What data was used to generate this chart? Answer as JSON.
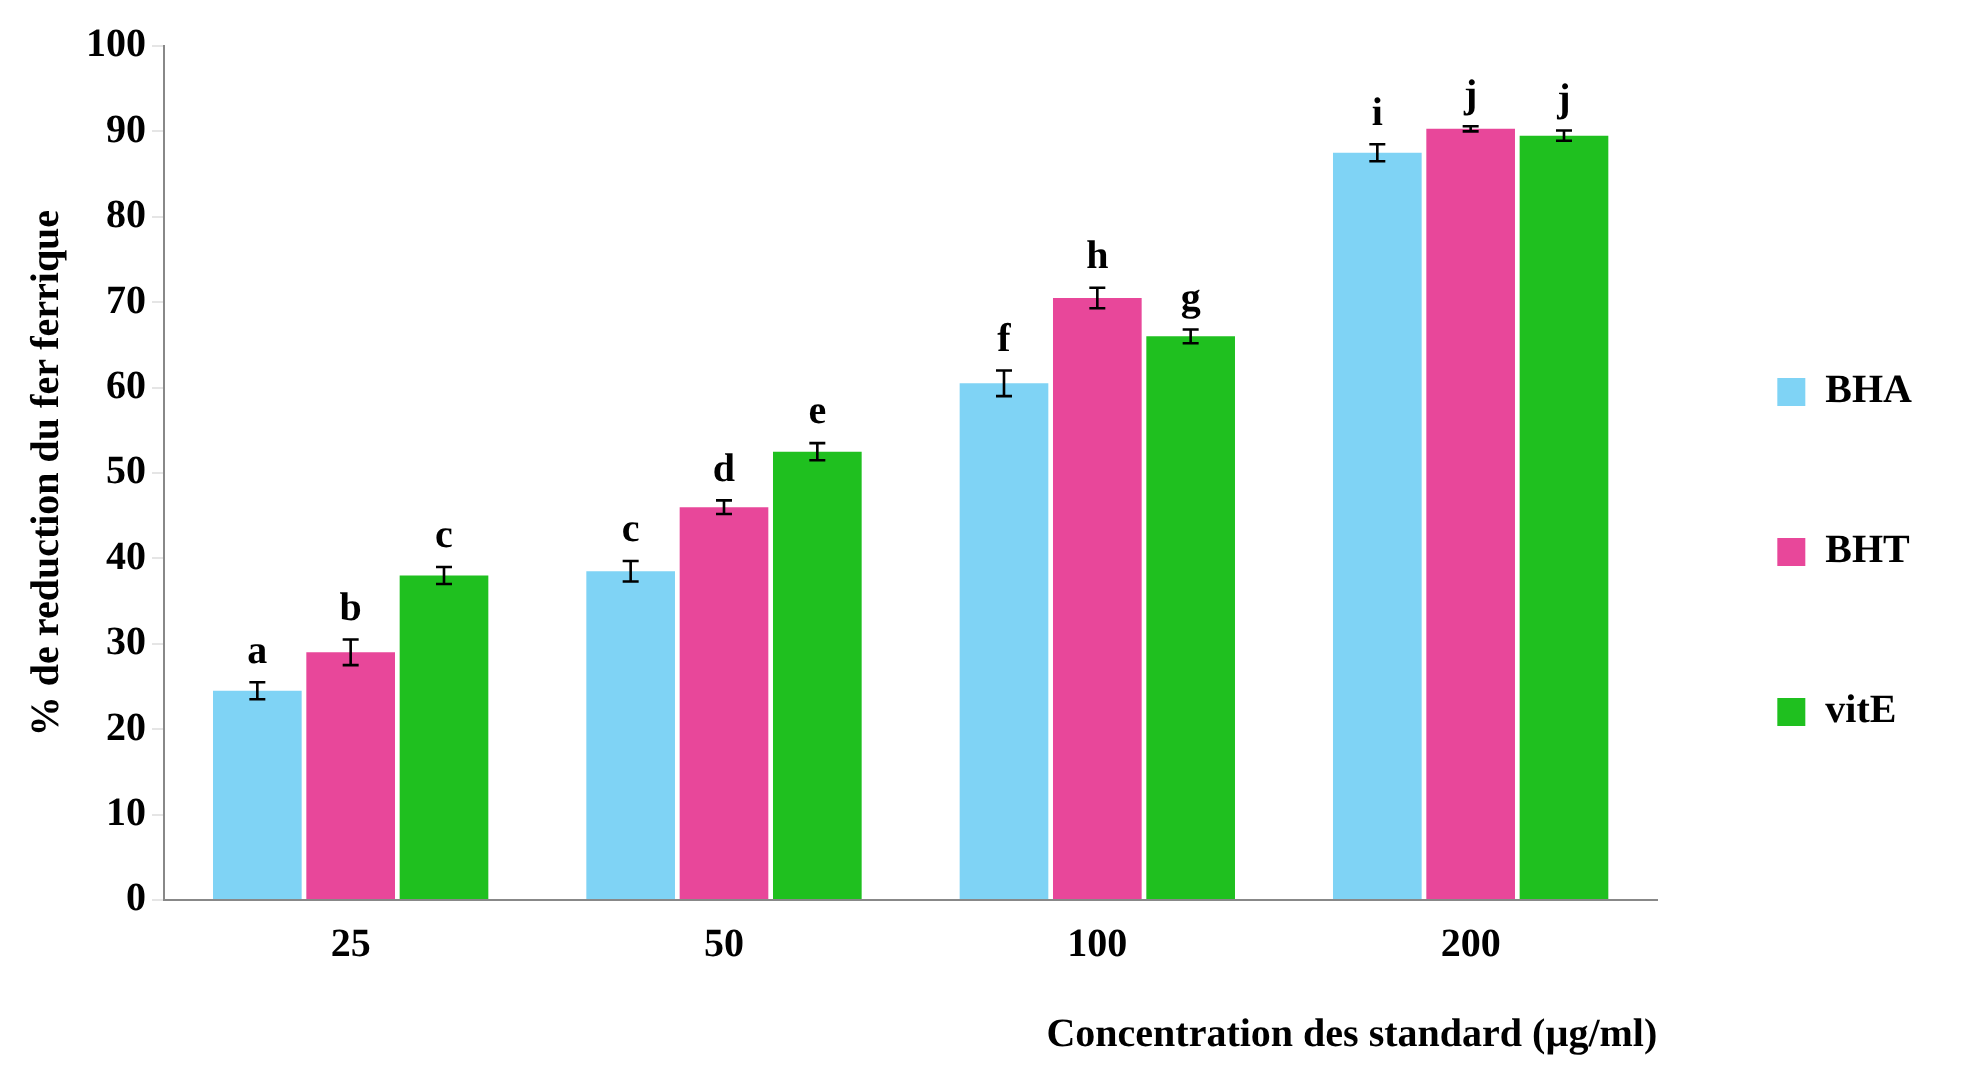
{
  "chart_data": {
    "type": "bar",
    "xlabel": "Concentration des standard (µg/ml)",
    "ylabel": "% de reduction du fer ferrique",
    "categories": [
      "25",
      "50",
      "100",
      "200"
    ],
    "series": [
      {
        "name": "BHA",
        "color": "#7fd3f5",
        "values": [
          24.5,
          38.5,
          60.5,
          87.5
        ],
        "errors": [
          1,
          1.2,
          1.5,
          1
        ]
      },
      {
        "name": "BHT",
        "color": "#e8479a",
        "values": [
          29,
          46,
          70.5,
          90.3
        ],
        "errors": [
          1.5,
          0.8,
          1.2,
          0.3
        ]
      },
      {
        "name": "vitE",
        "color": "#1fc01f",
        "values": [
          38,
          52.5,
          66,
          89.5
        ],
        "errors": [
          1,
          1,
          0.8,
          0.6
        ]
      }
    ],
    "ylim": [
      0,
      100
    ],
    "yticks": [
      0,
      10,
      20,
      30,
      40,
      50,
      60,
      70,
      80,
      90,
      100
    ],
    "grid": false,
    "legend": "right",
    "annotations": [
      "a",
      "b",
      "c",
      "c",
      "d",
      "e",
      "f",
      "h",
      "g",
      "i",
      "j",
      "j"
    ]
  }
}
